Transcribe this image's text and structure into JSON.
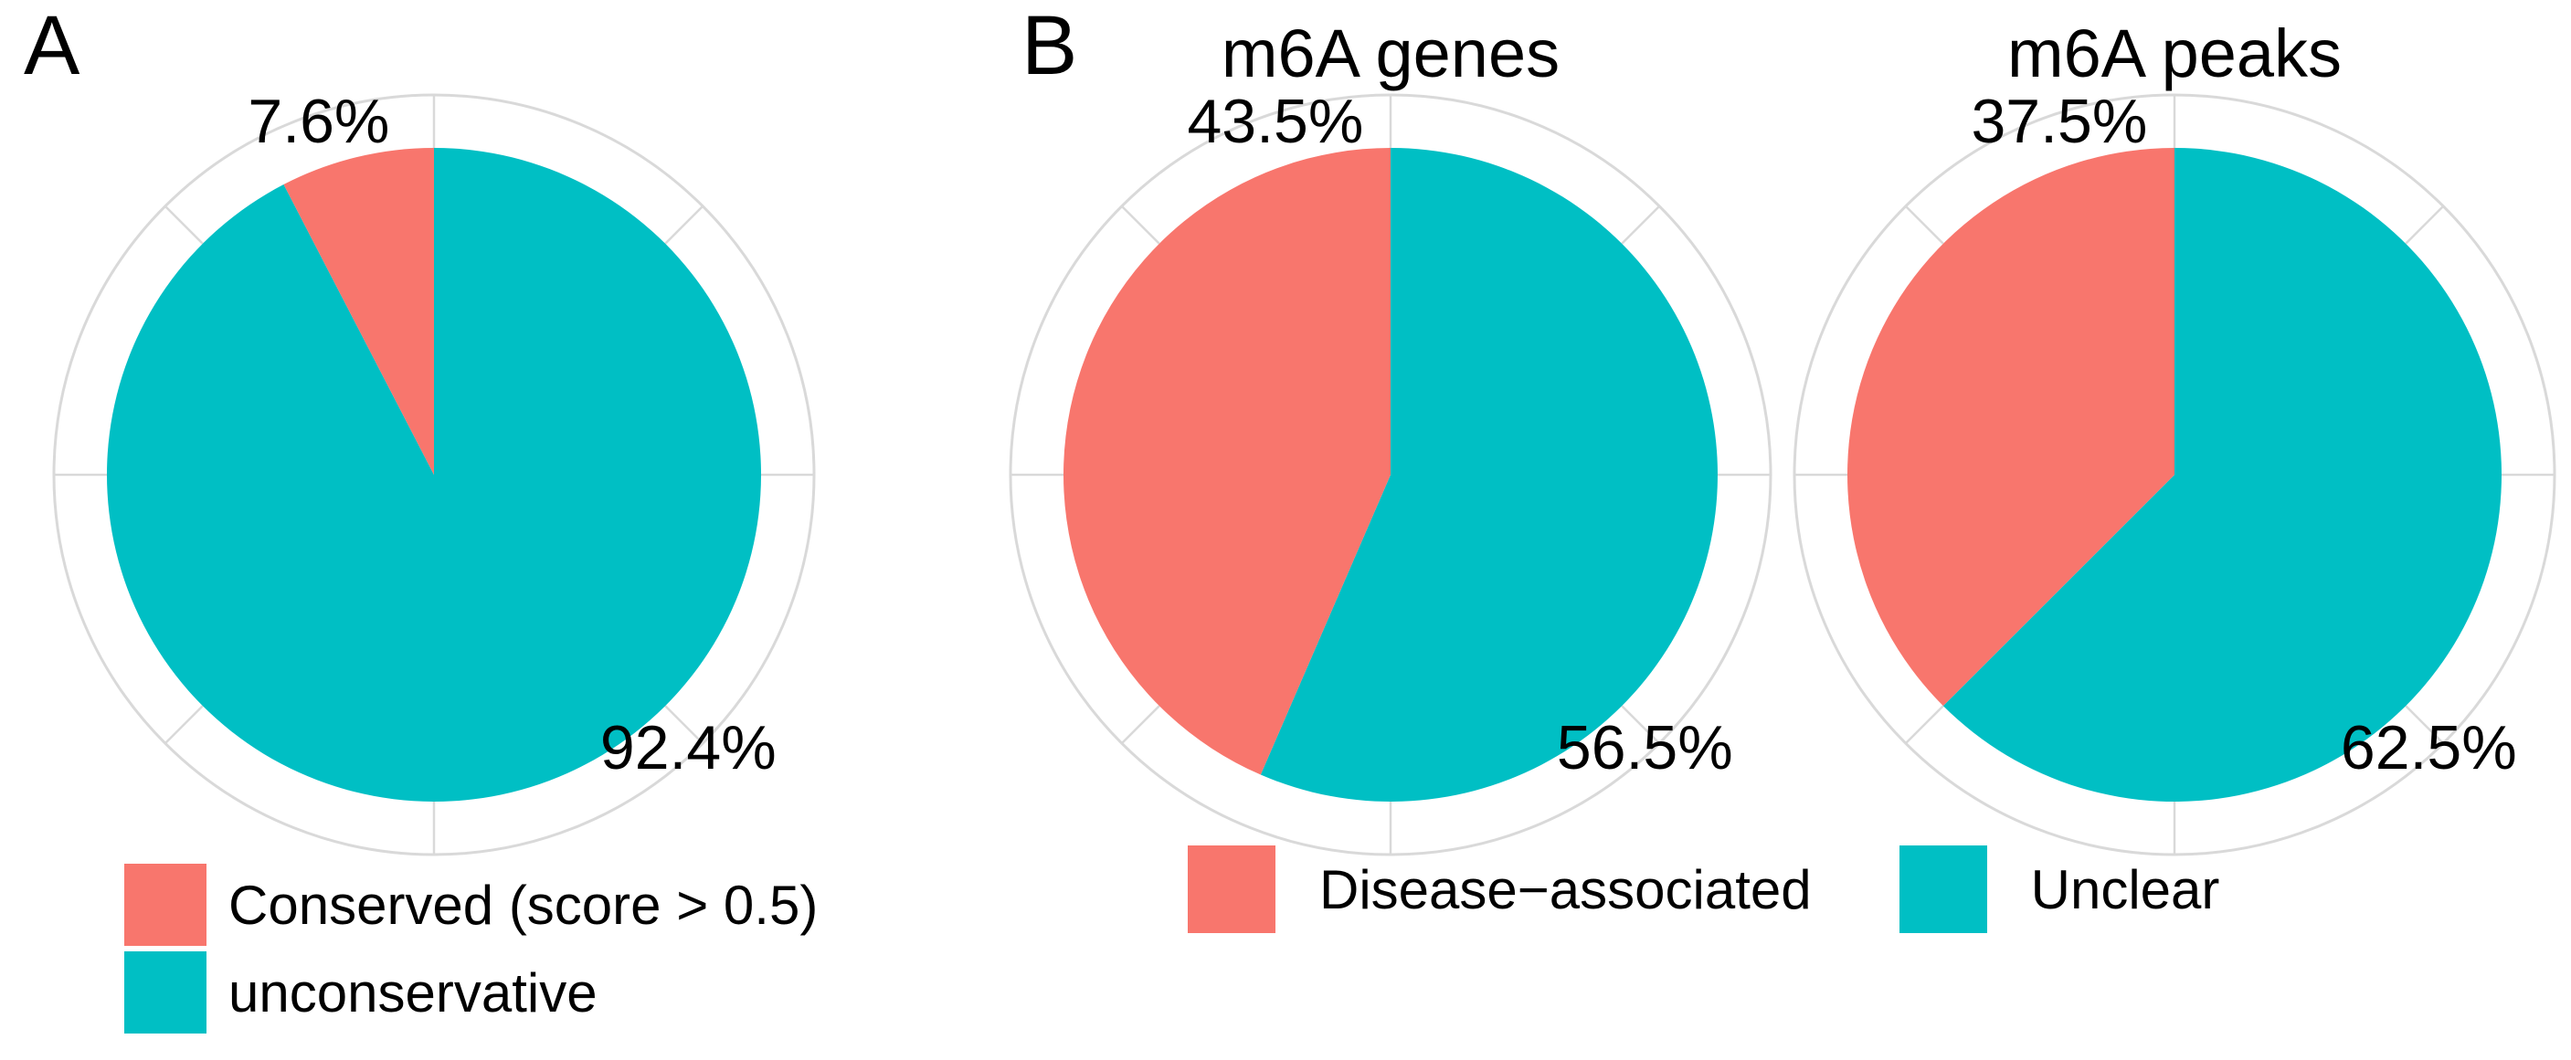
{
  "figure": {
    "background": "#FFFFFF"
  },
  "colors": {
    "salmon": "#F8766D",
    "teal": "#00BFC4",
    "ring": "#D9D9D9",
    "text": "#000000"
  },
  "panels": {
    "a": {
      "label": "A",
      "legend": {
        "items": [
          {
            "color": "salmon",
            "label": "Conserved (score > 0.5)"
          },
          {
            "color": "teal",
            "label": "unconservative"
          }
        ]
      }
    },
    "b": {
      "label": "B",
      "legend": {
        "items": [
          {
            "color": "salmon",
            "label": "Disease−associated"
          },
          {
            "color": "teal",
            "label": "Unclear"
          }
        ]
      }
    }
  },
  "chart_data": [
    {
      "type": "pie",
      "panel": "A",
      "title": "",
      "categories": [
        "Conserved (score > 0.5)",
        "unconservative"
      ],
      "values": [
        7.6,
        92.4
      ],
      "unit": "%",
      "slice_labels": [
        "7.6%",
        "92.4%"
      ],
      "slice_colors": [
        "salmon",
        "teal"
      ],
      "start_angle": "12-o'clock",
      "direction": "clockwise (second category drawn first)",
      "grid": "outer gray ring with radial ticks every 45 degrees",
      "legend_position": "below, left-aligned, stacked"
    },
    {
      "type": "pie",
      "panel": "B",
      "title": "m6A genes",
      "categories": [
        "Disease−associated",
        "Unclear"
      ],
      "values": [
        43.5,
        56.5
      ],
      "unit": "%",
      "slice_labels": [
        "43.5%",
        "56.5%"
      ],
      "slice_colors": [
        "salmon",
        "teal"
      ],
      "start_angle": "12-o'clock",
      "direction": "clockwise (second category drawn first)",
      "grid": "outer gray ring with radial ticks every 45 degrees",
      "legend_position": "below, shared single row for panel B"
    },
    {
      "type": "pie",
      "panel": "B",
      "title": "m6A peaks",
      "categories": [
        "Disease−associated",
        "Unclear"
      ],
      "values": [
        37.5,
        62.5
      ],
      "unit": "%",
      "slice_labels": [
        "37.5%",
        "62.5%"
      ],
      "slice_colors": [
        "salmon",
        "teal"
      ],
      "start_angle": "12-o'clock",
      "direction": "clockwise (second category drawn first)",
      "grid": "outer gray ring with radial ticks every 45 degrees",
      "legend_position": "below, shared single row for panel B"
    }
  ]
}
